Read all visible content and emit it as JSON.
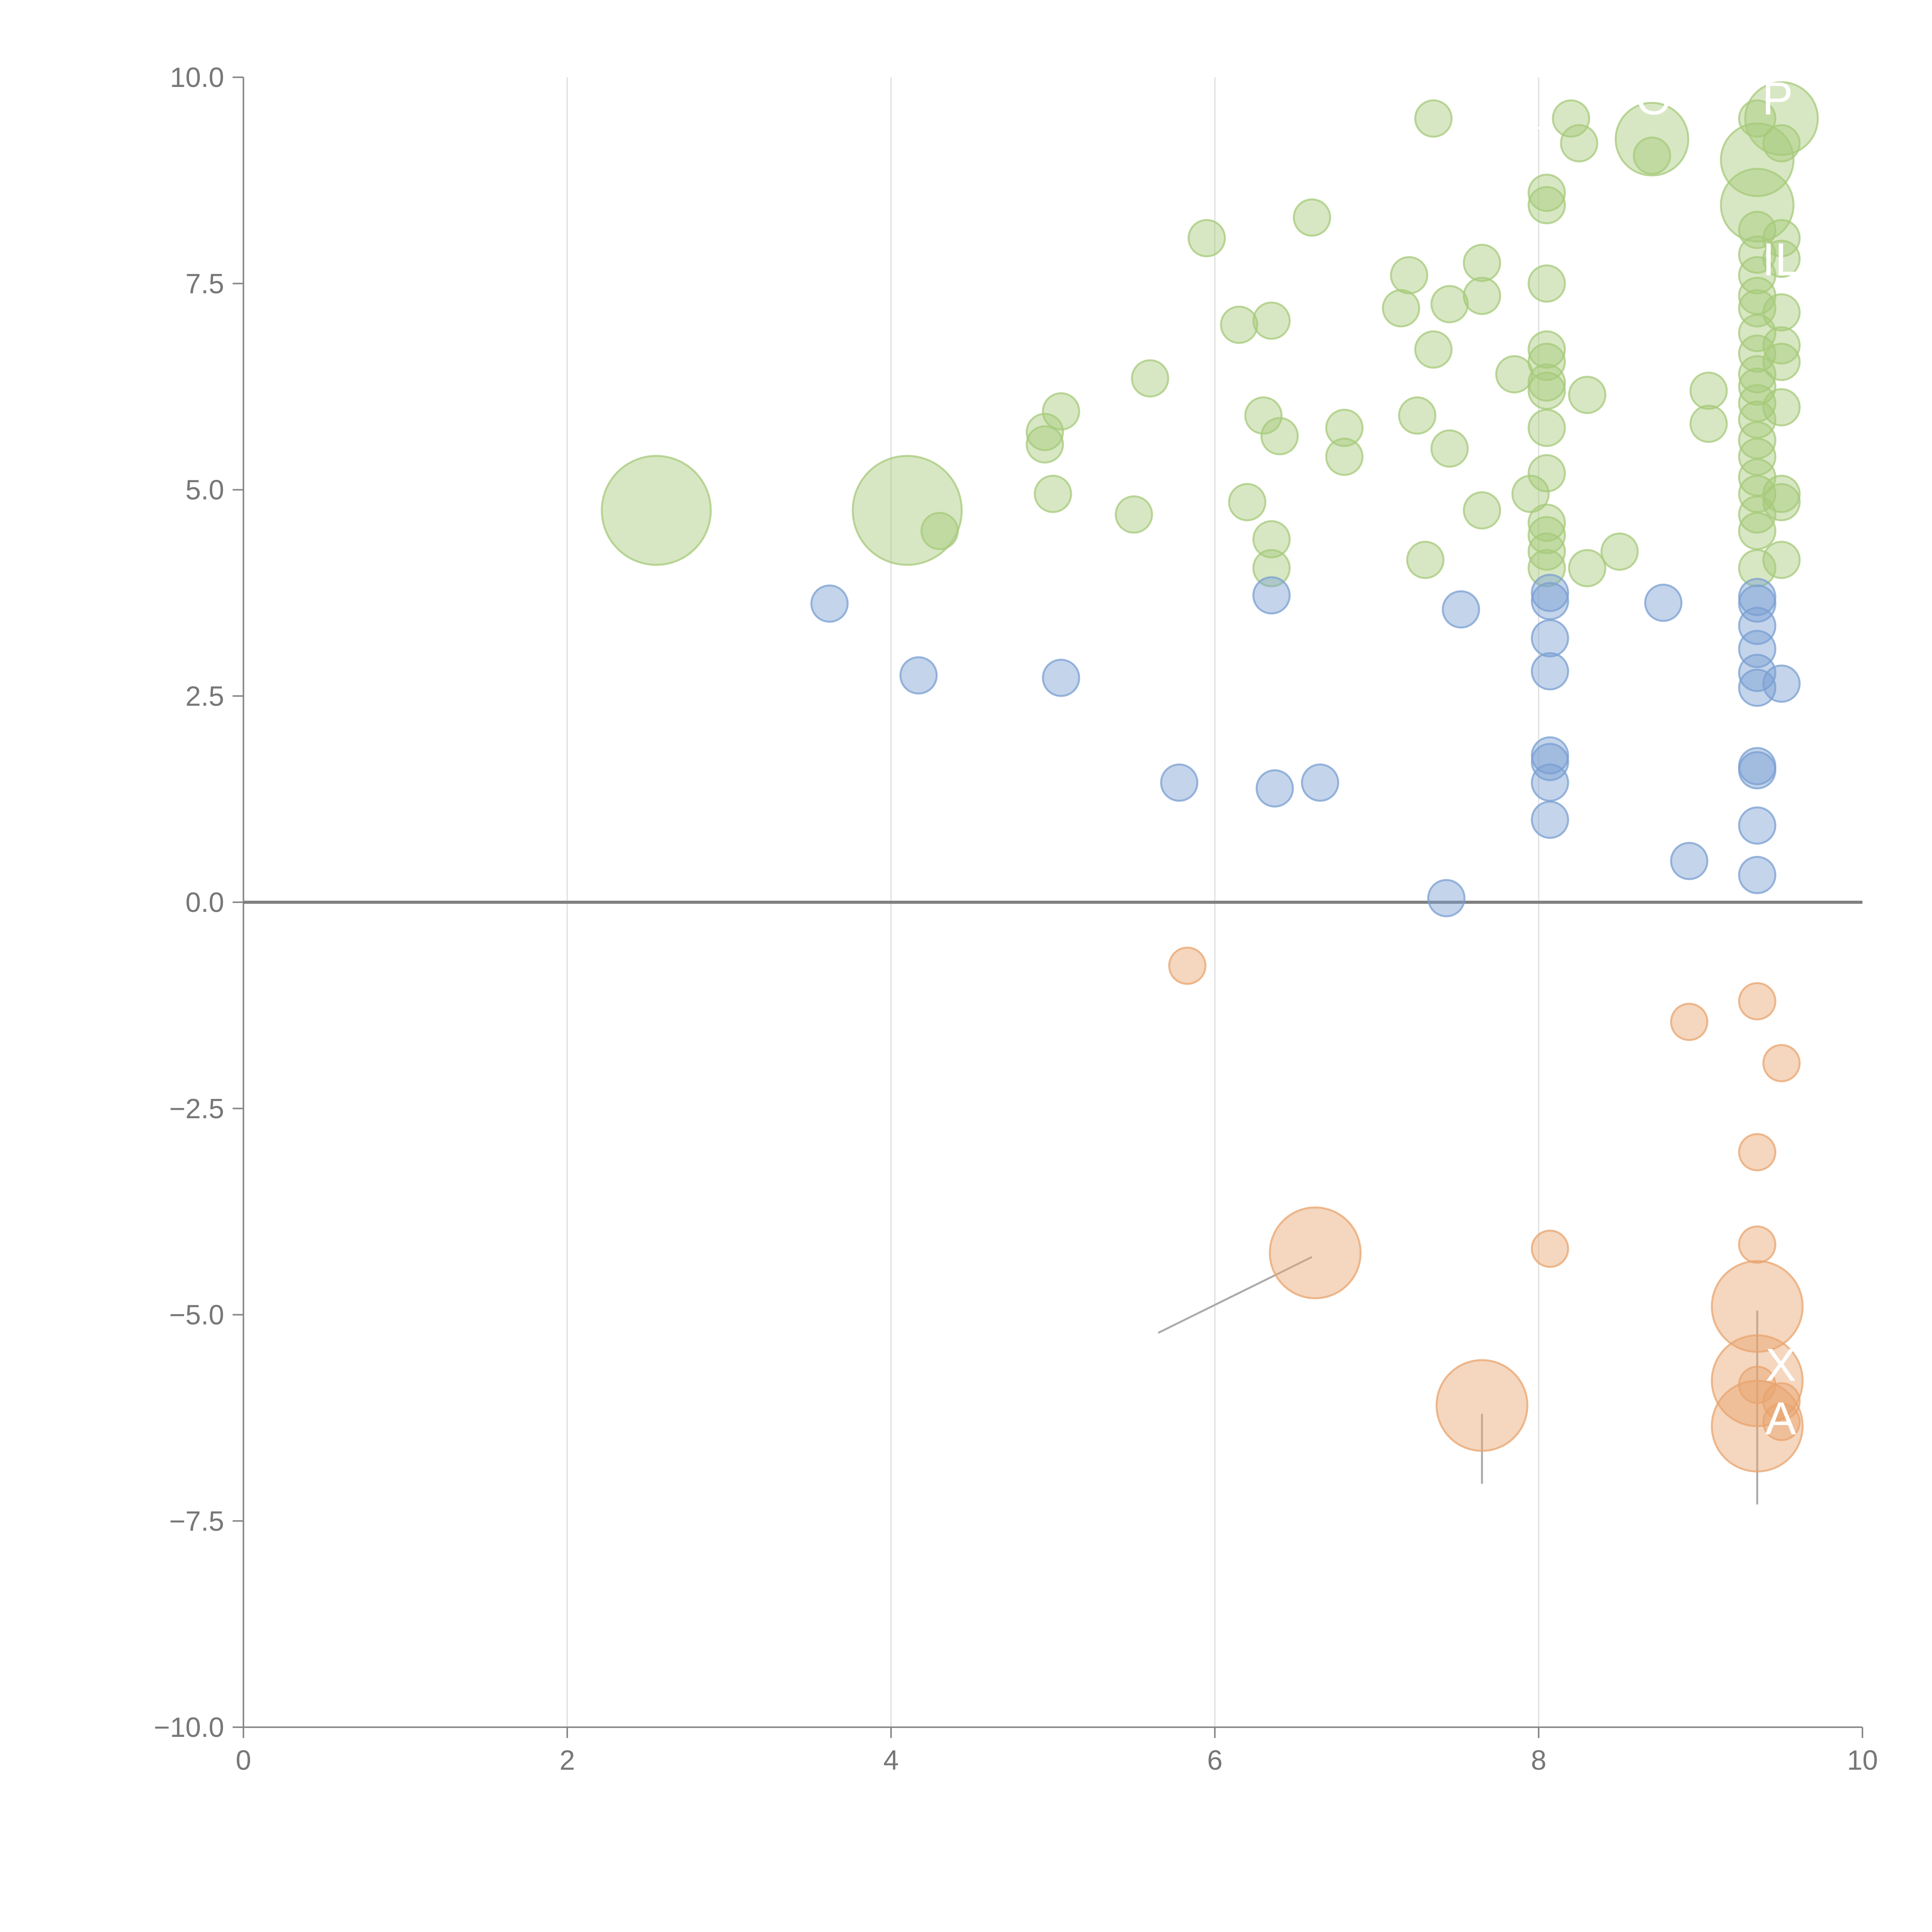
{
  "chart_data": {
    "type": "scatter",
    "title": "",
    "xlabel": "",
    "ylabel": "",
    "xlim": [
      0,
      10
    ],
    "ylim": [
      -10,
      10
    ],
    "x_ticks": [
      "0",
      "2",
      "4",
      "6",
      "8",
      "10"
    ],
    "y_ticks": [
      "−10.0",
      "−7.5",
      "−5.0",
      "−2.5",
      "0.0",
      "2.5",
      "5.0",
      "7.5",
      "10.0"
    ],
    "grid": "vertical",
    "colors": {
      "green": "#a6c97a",
      "blue": "#7a9fd2",
      "orange": "#e8a46e",
      "axis": "#888888",
      "grid": "#dddddd",
      "zero_line": "#808080"
    },
    "series": [
      {
        "name": "green",
        "color": "#a6c97a",
        "points": [
          {
            "x": 2.55,
            "y": 4.75,
            "s": 3
          },
          {
            "x": 4.1,
            "y": 4.75,
            "s": 3
          },
          {
            "x": 4.3,
            "y": 4.5,
            "s": 1
          },
          {
            "x": 4.95,
            "y": 5.7,
            "s": 1
          },
          {
            "x": 4.95,
            "y": 5.55,
            "s": 1
          },
          {
            "x": 5.05,
            "y": 5.95,
            "s": 1
          },
          {
            "x": 5.0,
            "y": 4.95,
            "s": 1
          },
          {
            "x": 5.5,
            "y": 4.7,
            "s": 1
          },
          {
            "x": 5.6,
            "y": 6.35,
            "s": 1
          },
          {
            "x": 5.95,
            "y": 8.05,
            "s": 1
          },
          {
            "x": 6.15,
            "y": 7.0,
            "s": 1
          },
          {
            "x": 6.2,
            "y": 4.85,
            "s": 1
          },
          {
            "x": 6.3,
            "y": 5.9,
            "s": 1
          },
          {
            "x": 6.35,
            "y": 7.05,
            "s": 1
          },
          {
            "x": 6.4,
            "y": 5.65,
            "s": 1
          },
          {
            "x": 6.35,
            "y": 4.4,
            "s": 1
          },
          {
            "x": 6.35,
            "y": 4.05,
            "s": 1
          },
          {
            "x": 6.6,
            "y": 8.3,
            "s": 1
          },
          {
            "x": 6.8,
            "y": 5.75,
            "s": 1
          },
          {
            "x": 6.8,
            "y": 5.4,
            "s": 1
          },
          {
            "x": 7.15,
            "y": 7.2,
            "s": 1
          },
          {
            "x": 7.2,
            "y": 7.6,
            "s": 1
          },
          {
            "x": 7.25,
            "y": 5.9,
            "s": 1
          },
          {
            "x": 7.3,
            "y": 4.15,
            "s": 1
          },
          {
            "x": 7.35,
            "y": 9.5,
            "s": 1
          },
          {
            "x": 7.35,
            "y": 6.7,
            "s": 1
          },
          {
            "x": 7.45,
            "y": 7.25,
            "s": 1
          },
          {
            "x": 7.45,
            "y": 5.5,
            "s": 1
          },
          {
            "x": 7.65,
            "y": 7.75,
            "s": 1
          },
          {
            "x": 7.65,
            "y": 7.35,
            "s": 1
          },
          {
            "x": 7.65,
            "y": 4.75,
            "s": 1
          },
          {
            "x": 7.85,
            "y": 6.4,
            "s": 1
          },
          {
            "x": 7.95,
            "y": 4.95,
            "s": 1
          },
          {
            "x": 8.05,
            "y": 8.6,
            "s": 1
          },
          {
            "x": 8.05,
            "y": 8.45,
            "s": 1
          },
          {
            "x": 8.05,
            "y": 7.5,
            "s": 1
          },
          {
            "x": 8.05,
            "y": 6.7,
            "s": 1
          },
          {
            "x": 8.05,
            "y": 6.55,
            "s": 1
          },
          {
            "x": 8.05,
            "y": 6.3,
            "s": 1
          },
          {
            "x": 8.05,
            "y": 6.2,
            "s": 1
          },
          {
            "x": 8.05,
            "y": 5.75,
            "s": 1
          },
          {
            "x": 8.05,
            "y": 5.2,
            "s": 1
          },
          {
            "x": 8.05,
            "y": 4.6,
            "s": 1
          },
          {
            "x": 8.05,
            "y": 4.45,
            "s": 1
          },
          {
            "x": 8.05,
            "y": 4.25,
            "s": 1
          },
          {
            "x": 8.05,
            "y": 4.05,
            "s": 1
          },
          {
            "x": 8.2,
            "y": 9.5,
            "s": 1
          },
          {
            "x": 8.25,
            "y": 9.2,
            "s": 1
          },
          {
            "x": 8.3,
            "y": 6.15,
            "s": 1
          },
          {
            "x": 8.3,
            "y": 4.05,
            "s": 1
          },
          {
            "x": 8.5,
            "y": 4.25,
            "s": 1
          },
          {
            "x": 8.7,
            "y": 9.25,
            "s": 2
          },
          {
            "x": 8.7,
            "y": 9.05,
            "s": 1
          },
          {
            "x": 9.05,
            "y": 6.2,
            "s": 1
          },
          {
            "x": 9.05,
            "y": 5.8,
            "s": 1
          },
          {
            "x": 9.35,
            "y": 9.5,
            "s": 1
          },
          {
            "x": 9.35,
            "y": 9.0,
            "s": 2
          },
          {
            "x": 9.35,
            "y": 8.45,
            "s": 2
          },
          {
            "x": 9.35,
            "y": 8.15,
            "s": 1
          },
          {
            "x": 9.35,
            "y": 7.85,
            "s": 1
          },
          {
            "x": 9.35,
            "y": 7.6,
            "s": 1
          },
          {
            "x": 9.35,
            "y": 7.35,
            "s": 1
          },
          {
            "x": 9.35,
            "y": 7.2,
            "s": 1
          },
          {
            "x": 9.35,
            "y": 6.9,
            "s": 1
          },
          {
            "x": 9.35,
            "y": 6.65,
            "s": 1
          },
          {
            "x": 9.35,
            "y": 6.4,
            "s": 1
          },
          {
            "x": 9.35,
            "y": 6.25,
            "s": 1
          },
          {
            "x": 9.35,
            "y": 6.05,
            "s": 1
          },
          {
            "x": 9.35,
            "y": 5.85,
            "s": 1
          },
          {
            "x": 9.35,
            "y": 5.6,
            "s": 1
          },
          {
            "x": 9.35,
            "y": 5.4,
            "s": 1
          },
          {
            "x": 9.35,
            "y": 5.15,
            "s": 1
          },
          {
            "x": 9.35,
            "y": 4.95,
            "s": 1
          },
          {
            "x": 9.35,
            "y": 4.7,
            "s": 1
          },
          {
            "x": 9.35,
            "y": 4.5,
            "s": 1
          },
          {
            "x": 9.35,
            "y": 4.05,
            "s": 1
          },
          {
            "x": 9.5,
            "y": 9.5,
            "s": 2
          },
          {
            "x": 9.5,
            "y": 9.2,
            "s": 1
          },
          {
            "x": 9.5,
            "y": 8.05,
            "s": 1
          },
          {
            "x": 9.5,
            "y": 7.8,
            "s": 1
          },
          {
            "x": 9.5,
            "y": 7.15,
            "s": 1
          },
          {
            "x": 9.5,
            "y": 6.75,
            "s": 1
          },
          {
            "x": 9.5,
            "y": 6.55,
            "s": 1
          },
          {
            "x": 9.5,
            "y": 6.0,
            "s": 1
          },
          {
            "x": 9.5,
            "y": 4.95,
            "s": 1
          },
          {
            "x": 9.5,
            "y": 4.85,
            "s": 1
          },
          {
            "x": 9.5,
            "y": 4.15,
            "s": 1
          }
        ]
      },
      {
        "name": "blue",
        "color": "#7a9fd2",
        "points": [
          {
            "x": 3.62,
            "y": 3.62,
            "s": 1
          },
          {
            "x": 4.17,
            "y": 2.75,
            "s": 1
          },
          {
            "x": 5.05,
            "y": 2.72,
            "s": 1
          },
          {
            "x": 5.78,
            "y": 1.45,
            "s": 1
          },
          {
            "x": 6.35,
            "y": 3.72,
            "s": 1
          },
          {
            "x": 6.37,
            "y": 1.38,
            "s": 1
          },
          {
            "x": 6.65,
            "y": 1.45,
            "s": 1
          },
          {
            "x": 7.43,
            "y": 0.05,
            "s": 1
          },
          {
            "x": 7.52,
            "y": 3.55,
            "s": 1
          },
          {
            "x": 8.07,
            "y": 3.75,
            "s": 1
          },
          {
            "x": 8.07,
            "y": 3.65,
            "s": 1
          },
          {
            "x": 8.07,
            "y": 3.2,
            "s": 1
          },
          {
            "x": 8.07,
            "y": 2.8,
            "s": 1
          },
          {
            "x": 8.07,
            "y": 1.78,
            "s": 1
          },
          {
            "x": 8.07,
            "y": 1.7,
            "s": 1
          },
          {
            "x": 8.07,
            "y": 1.45,
            "s": 1
          },
          {
            "x": 8.07,
            "y": 1.0,
            "s": 1
          },
          {
            "x": 8.77,
            "y": 3.63,
            "s": 1
          },
          {
            "x": 8.93,
            "y": 0.5,
            "s": 1
          },
          {
            "x": 9.35,
            "y": 3.7,
            "s": 1
          },
          {
            "x": 9.35,
            "y": 3.62,
            "s": 1
          },
          {
            "x": 9.35,
            "y": 3.35,
            "s": 1
          },
          {
            "x": 9.35,
            "y": 3.07,
            "s": 1
          },
          {
            "x": 9.35,
            "y": 2.78,
            "s": 1
          },
          {
            "x": 9.35,
            "y": 2.6,
            "s": 1
          },
          {
            "x": 9.35,
            "y": 1.65,
            "s": 1
          },
          {
            "x": 9.35,
            "y": 1.6,
            "s": 1
          },
          {
            "x": 9.35,
            "y": 0.93,
            "s": 1
          },
          {
            "x": 9.35,
            "y": 0.33,
            "s": 1
          },
          {
            "x": 9.5,
            "y": 2.65,
            "s": 1
          }
        ]
      },
      {
        "name": "orange",
        "color": "#e8a46e",
        "points": [
          {
            "x": 5.83,
            "y": -0.77,
            "s": 1
          },
          {
            "x": 6.62,
            "y": -4.25,
            "s": 2.5
          },
          {
            "x": 7.65,
            "y": -6.1,
            "s": 2.5
          },
          {
            "x": 8.07,
            "y": -4.2,
            "s": 1
          },
          {
            "x": 8.93,
            "y": -1.45,
            "s": 1
          },
          {
            "x": 9.35,
            "y": -1.2,
            "s": 1
          },
          {
            "x": 9.35,
            "y": -3.03,
            "s": 1
          },
          {
            "x": 9.35,
            "y": -4.15,
            "s": 1
          },
          {
            "x": 9.35,
            "y": -4.9,
            "s": 2.5
          },
          {
            "x": 9.35,
            "y": -5.8,
            "s": 2.5
          },
          {
            "x": 9.35,
            "y": -5.85,
            "s": 1
          },
          {
            "x": 9.35,
            "y": -6.35,
            "s": 2.5
          },
          {
            "x": 9.5,
            "y": -1.95,
            "s": 1
          },
          {
            "x": 9.5,
            "y": -6.05,
            "s": 1
          },
          {
            "x": 9.5,
            "y": -6.3,
            "s": 1
          }
        ]
      }
    ],
    "leader_lines": [
      {
        "from": [
          7.2,
          9.55
        ],
        "to": [
          8.65,
          9.25
        ],
        "color": "#ffffff"
      },
      {
        "from": [
          9.35,
          8.6
        ],
        "to": [
          9.5,
          7.9
        ],
        "color": "#ffffff"
      },
      {
        "from": [
          6.6,
          -4.3
        ],
        "to": [
          5.65,
          -5.22
        ],
        "color": "#aaaaaa"
      },
      {
        "from": [
          7.65,
          -6.2
        ],
        "to": [
          7.65,
          -7.05
        ],
        "color": "#aaaaaa"
      },
      {
        "from": [
          9.35,
          -4.95
        ],
        "to": [
          9.35,
          -7.3
        ],
        "color": "#aaaaaa"
      }
    ],
    "annotations": [
      {
        "text": "O",
        "x": 8.6,
        "y": 9.55
      },
      {
        "text": "P",
        "x": 9.38,
        "y": 9.55
      },
      {
        "text": "IL",
        "x": 9.38,
        "y": 7.6
      },
      {
        "text": "X",
        "x": 9.4,
        "y": -5.8
      },
      {
        "text": "A",
        "x": 9.4,
        "y": -6.45
      }
    ]
  }
}
